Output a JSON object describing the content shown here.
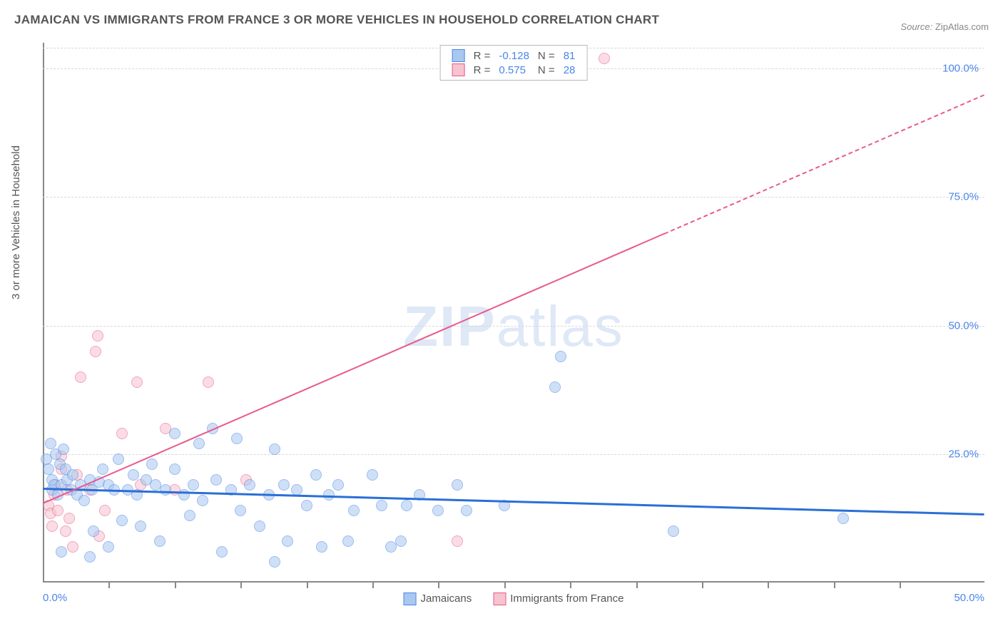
{
  "title": "JAMAICAN VS IMMIGRANTS FROM FRANCE 3 OR MORE VEHICLES IN HOUSEHOLD CORRELATION CHART",
  "source_label": "Source:",
  "source_value": "ZipAtlas.com",
  "ylabel": "3 or more Vehicles in Household",
  "watermark_a": "ZIP",
  "watermark_b": "atlas",
  "chart": {
    "type": "scatter",
    "xlim": [
      0,
      50
    ],
    "ylim": [
      0,
      105
    ],
    "x_ticks": [
      0,
      50
    ],
    "x_tick_labels": [
      "0.0%",
      "50.0%"
    ],
    "x_minor_ticks": [
      3.5,
      7,
      10.5,
      14,
      17.5,
      21,
      24.5,
      28,
      31.5,
      35,
      38.5,
      42,
      45.5
    ],
    "y_ticks": [
      25,
      50,
      75,
      100
    ],
    "y_tick_labels": [
      "25.0%",
      "50.0%",
      "75.0%",
      "100.0%"
    ],
    "grid_color": "#d8d8d8",
    "background_color": "#ffffff",
    "axis_color": "#888888",
    "tick_label_color": "#4a86e8",
    "marker_radius": 8,
    "marker_opacity": 0.55,
    "marker_border_width": 1.5
  },
  "series": {
    "blue": {
      "label": "Jamaicans",
      "fill": "#a9c8f0",
      "stroke": "#4a86e8",
      "r_label": "R =",
      "r_value": "-0.128",
      "n_label": "N =",
      "n_value": "81",
      "trend": {
        "y_at_x0": 18.5,
        "y_at_x50": 13.5,
        "color": "#2a6fd6",
        "width": 3
      },
      "points": [
        [
          0.2,
          24
        ],
        [
          0.3,
          22
        ],
        [
          0.4,
          27
        ],
        [
          0.5,
          18
        ],
        [
          0.5,
          20
        ],
        [
          0.6,
          19
        ],
        [
          0.7,
          25
        ],
        [
          0.8,
          17
        ],
        [
          0.9,
          23
        ],
        [
          1.0,
          19
        ],
        [
          1.1,
          26
        ],
        [
          1.2,
          22
        ],
        [
          1.0,
          6
        ],
        [
          1.3,
          20
        ],
        [
          1.5,
          18
        ],
        [
          1.6,
          21
        ],
        [
          1.8,
          17
        ],
        [
          2.0,
          19
        ],
        [
          2.2,
          16
        ],
        [
          2.5,
          5
        ],
        [
          2.5,
          20
        ],
        [
          2.6,
          18
        ],
        [
          2.7,
          10
        ],
        [
          3.0,
          19.5
        ],
        [
          3.2,
          22
        ],
        [
          3.5,
          19
        ],
        [
          3.5,
          7
        ],
        [
          3.8,
          18
        ],
        [
          4.0,
          24
        ],
        [
          4.2,
          12
        ],
        [
          4.5,
          18
        ],
        [
          4.8,
          21
        ],
        [
          5.0,
          17
        ],
        [
          5.2,
          11
        ],
        [
          5.5,
          20
        ],
        [
          5.8,
          23
        ],
        [
          6.0,
          19
        ],
        [
          6.2,
          8
        ],
        [
          6.5,
          18
        ],
        [
          7.0,
          22
        ],
        [
          7.0,
          29
        ],
        [
          7.5,
          17
        ],
        [
          7.8,
          13
        ],
        [
          8.0,
          19
        ],
        [
          8.3,
          27
        ],
        [
          8.5,
          16
        ],
        [
          9.0,
          30
        ],
        [
          9.2,
          20
        ],
        [
          9.5,
          6
        ],
        [
          10.0,
          18
        ],
        [
          10.3,
          28
        ],
        [
          10.5,
          14
        ],
        [
          11.0,
          19
        ],
        [
          11.5,
          11
        ],
        [
          12.0,
          17
        ],
        [
          12.3,
          4
        ],
        [
          12.3,
          26
        ],
        [
          12.8,
          19
        ],
        [
          13.0,
          8
        ],
        [
          13.5,
          18
        ],
        [
          14.0,
          15
        ],
        [
          14.5,
          21
        ],
        [
          14.8,
          7
        ],
        [
          15.2,
          17
        ],
        [
          15.7,
          19
        ],
        [
          16.2,
          8
        ],
        [
          16.5,
          14
        ],
        [
          17.5,
          21
        ],
        [
          18.0,
          15
        ],
        [
          18.5,
          7
        ],
        [
          19.0,
          8
        ],
        [
          19.3,
          15
        ],
        [
          20.0,
          17
        ],
        [
          21.0,
          14
        ],
        [
          22.0,
          19
        ],
        [
          22.5,
          14
        ],
        [
          24.5,
          15
        ],
        [
          27.2,
          38
        ],
        [
          27.5,
          44
        ],
        [
          33.5,
          10
        ],
        [
          42.5,
          12.5
        ]
      ]
    },
    "pink": {
      "label": "Immigrants from France",
      "fill": "#f6c3cf",
      "stroke": "#e85a8a",
      "r_label": "R =",
      "r_value": "0.575",
      "n_label": "N =",
      "n_value": "28",
      "trend": {
        "y_at_x0": 15.5,
        "y_at_x50": 95,
        "color": "#e85a8a",
        "width": 2,
        "dash_after_x": 33
      },
      "points": [
        [
          0.3,
          15
        ],
        [
          0.4,
          13.5
        ],
        [
          0.5,
          11
        ],
        [
          0.6,
          17
        ],
        [
          0.7,
          19
        ],
        [
          0.8,
          14
        ],
        [
          1.0,
          22
        ],
        [
          1.0,
          24.5
        ],
        [
          1.2,
          10
        ],
        [
          1.3,
          18
        ],
        [
          1.4,
          12.5
        ],
        [
          1.6,
          7
        ],
        [
          1.8,
          21
        ],
        [
          2.0,
          40
        ],
        [
          2.5,
          18
        ],
        [
          2.8,
          45
        ],
        [
          2.9,
          48
        ],
        [
          3.3,
          14
        ],
        [
          3.0,
          9
        ],
        [
          4.2,
          29
        ],
        [
          5.0,
          39
        ],
        [
          5.2,
          19
        ],
        [
          6.5,
          30
        ],
        [
          7.0,
          18
        ],
        [
          8.8,
          39
        ],
        [
          10.8,
          20
        ],
        [
          22.0,
          8
        ],
        [
          29.8,
          102
        ]
      ]
    }
  }
}
